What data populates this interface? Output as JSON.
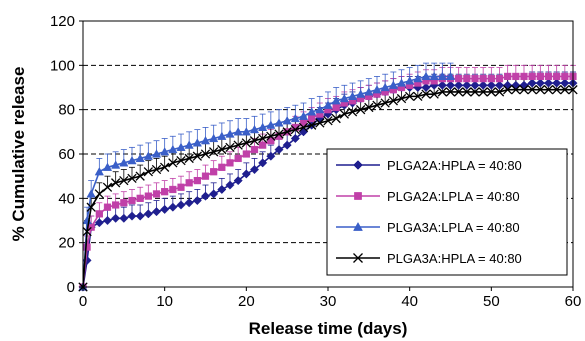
{
  "chart_data": {
    "type": "line",
    "xlabel": "Release time (days)",
    "ylabel": "% Cumulative release",
    "xlim": [
      0,
      60
    ],
    "ylim": [
      0,
      120
    ],
    "x_ticks": [
      0,
      10,
      20,
      30,
      40,
      50,
      60
    ],
    "y_ticks": [
      0,
      20,
      40,
      60,
      80,
      100,
      120
    ],
    "grid": "horizontal dashed at 20, 40, 60, 80, 100",
    "legend": "lower-right",
    "series": [
      {
        "name": "PLGA2A:HPLA = 40:80",
        "color": "#1f1f8f",
        "marker": "diamond",
        "error": 5,
        "x": [
          0,
          0.5,
          1,
          2,
          3,
          4,
          5,
          6,
          7,
          8,
          9,
          10,
          11,
          12,
          13,
          14,
          15,
          16,
          17,
          18,
          19,
          20,
          21,
          22,
          23,
          24,
          25,
          26,
          27,
          28,
          29,
          30,
          31,
          32,
          33,
          34,
          35,
          36,
          37,
          38,
          39,
          40,
          41,
          42,
          43,
          44,
          45,
          46,
          47,
          48,
          49,
          50,
          51,
          52,
          53,
          54,
          55,
          56,
          57,
          58,
          59,
          60
        ],
        "values": [
          0,
          12,
          27,
          29,
          30,
          31,
          31,
          32,
          32,
          33,
          34,
          35,
          36,
          37,
          38,
          39,
          41,
          42,
          44,
          46,
          48,
          51,
          53,
          56,
          59,
          62,
          64,
          67,
          70,
          73,
          76,
          78,
          80,
          82,
          83,
          85,
          86,
          87,
          88,
          89,
          90,
          90,
          90,
          90,
          91,
          91,
          91,
          91,
          91,
          91,
          91,
          91,
          91,
          91,
          91,
          91,
          92,
          92,
          92,
          92,
          92,
          92
        ]
      },
      {
        "name": "PLGA2A:LPLA = 40:80",
        "color": "#c040a8",
        "marker": "square",
        "error": 5,
        "x": [
          0,
          0.5,
          1,
          2,
          3,
          4,
          5,
          6,
          7,
          8,
          9,
          10,
          11,
          12,
          13,
          14,
          15,
          16,
          17,
          18,
          19,
          20,
          21,
          22,
          23,
          24,
          25,
          26,
          27,
          28,
          29,
          30,
          31,
          32,
          33,
          34,
          35,
          36,
          37,
          38,
          39,
          40,
          41,
          42,
          43,
          44,
          45,
          46,
          47,
          48,
          49,
          50,
          51,
          52,
          53,
          54,
          55,
          56,
          57,
          58,
          59,
          60
        ],
        "values": [
          0,
          18,
          27,
          33,
          36,
          37,
          38,
          39,
          40,
          41,
          42,
          43,
          44,
          45,
          47,
          48,
          50,
          52,
          54,
          56,
          58,
          60,
          62,
          64,
          66,
          68,
          70,
          72,
          74,
          76,
          78,
          80,
          81,
          83,
          84,
          85,
          86,
          87,
          88,
          89,
          90,
          91,
          92,
          93,
          93,
          94,
          94,
          94,
          94,
          94,
          94,
          94,
          94,
          95,
          95,
          95,
          95,
          95,
          95,
          95,
          95,
          95
        ]
      },
      {
        "name": "PLGA3A:LPLA = 40:80",
        "color": "#3a5fc8",
        "marker": "triangle",
        "error": 6,
        "x": [
          0,
          0.5,
          1,
          2,
          3,
          4,
          5,
          6,
          7,
          8,
          9,
          10,
          11,
          12,
          13,
          14,
          15,
          16,
          17,
          18,
          19,
          20,
          21,
          22,
          23,
          24,
          25,
          26,
          27,
          28,
          29,
          30,
          31,
          32,
          33,
          34,
          35,
          36,
          37,
          38,
          39,
          40,
          41,
          42,
          43,
          44,
          45
        ],
        "values": [
          0,
          30,
          42,
          52,
          54,
          55,
          56,
          57,
          58,
          59,
          60,
          61,
          62,
          63,
          64,
          65,
          66,
          67,
          68,
          69,
          70,
          70,
          71,
          72,
          73,
          74,
          75,
          76,
          77,
          79,
          80,
          82,
          84,
          85,
          86,
          87,
          88,
          89,
          90,
          91,
          92,
          93,
          94,
          95,
          95,
          95,
          95
        ]
      },
      {
        "name": "PLGA3A:HPLA = 40:80",
        "color": "#000000",
        "marker": "x",
        "error": 5,
        "x": [
          0,
          0.5,
          1,
          2,
          3,
          4,
          5,
          6,
          7,
          8,
          9,
          10,
          11,
          12,
          13,
          14,
          15,
          16,
          17,
          18,
          19,
          20,
          21,
          22,
          23,
          24,
          25,
          26,
          27,
          28,
          29,
          30,
          31,
          32,
          33,
          34,
          35,
          36,
          37,
          38,
          39,
          40,
          41,
          42,
          43,
          44,
          45,
          46,
          47,
          48,
          49,
          50,
          51,
          52,
          53,
          54,
          55,
          56,
          57,
          58,
          59,
          60
        ],
        "values": [
          0,
          25,
          36,
          42,
          45,
          47,
          48,
          49,
          50,
          52,
          53,
          54,
          56,
          57,
          58,
          59,
          60,
          61,
          62,
          63,
          64,
          65,
          66,
          67,
          68,
          69,
          70,
          71,
          72,
          73,
          74,
          75,
          76,
          78,
          79,
          80,
          81,
          82,
          83,
          84,
          85,
          86,
          86,
          87,
          87,
          88,
          88,
          88,
          88,
          88,
          88,
          88,
          88,
          89,
          89,
          89,
          89,
          89,
          89,
          89,
          89,
          89
        ]
      }
    ]
  }
}
